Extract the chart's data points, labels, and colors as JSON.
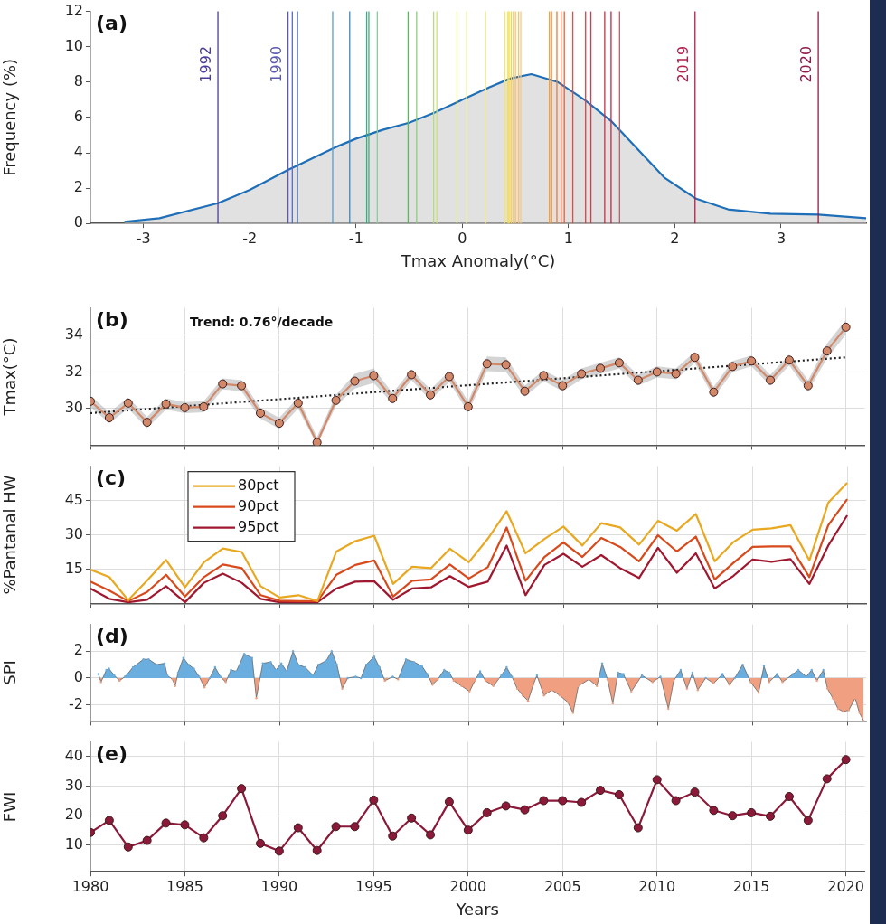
{
  "chart_data": [
    {
      "type": "area",
      "title": "(a)",
      "xlabel": "Tmax Anomaly(°C)",
      "ylabel": "Frequency (%)",
      "grid": false,
      "annotations": [
        {
          "text": "1992",
          "x": -2.3,
          "y": 9
        },
        {
          "text": "1990",
          "x": -1.64,
          "y": 9
        },
        {
          "text": "2019",
          "x": 2.19,
          "y": 9
        },
        {
          "text": "2020",
          "x": 3.35,
          "y": 9
        }
      ],
      "x": [
        -3.18,
        -2.85,
        -2.3,
        -2.0,
        -1.65,
        -1.2,
        -1.0,
        -0.75,
        -0.5,
        -0.25,
        0,
        0.25,
        0.45,
        0.65,
        0.9,
        1.15,
        1.4,
        1.65,
        1.9,
        2.2,
        2.5,
        2.9,
        3.35,
        3.8
      ],
      "series": [
        {
          "color": "#1f6fb8",
          "values": [
            0.1,
            0.3,
            1.15,
            1.9,
            3.0,
            4.3,
            4.8,
            5.3,
            5.7,
            6.3,
            7.0,
            7.7,
            8.2,
            8.45,
            8.0,
            7.0,
            5.8,
            4.2,
            2.6,
            1.4,
            0.8,
            0.55,
            0.5,
            0.3
          ]
        }
      ],
      "xlim": [
        -3.5,
        3.8
      ],
      "xticks": [
        -3,
        -2,
        -1,
        0,
        1,
        2,
        3
      ],
      "ylim": [
        0,
        12
      ],
      "yticks": [
        0,
        2,
        4,
        6,
        8,
        10,
        12
      ],
      "ref_lines": [
        {
          "axis": "x",
          "value": -2.3,
          "color": "#4a3d9a"
        },
        {
          "axis": "x",
          "value": -1.64,
          "color": "#5a5ab0"
        },
        {
          "axis": "x",
          "value": -1.6,
          "color": "#5b6cc0"
        },
        {
          "axis": "x",
          "value": -1.55,
          "color": "#5a80c8"
        },
        {
          "axis": "x",
          "value": -1.22,
          "color": "#5b9ccd"
        },
        {
          "axis": "x",
          "value": -1.06,
          "color": "#3f86b8"
        },
        {
          "axis": "x",
          "value": -0.9,
          "color": "#3aa88a"
        },
        {
          "axis": "x",
          "value": -0.88,
          "color": "#47ae7a"
        },
        {
          "axis": "x",
          "value": -0.8,
          "color": "#8ccb9f"
        },
        {
          "axis": "x",
          "value": -0.51,
          "color": "#5cb85c"
        },
        {
          "axis": "x",
          "value": -0.43,
          "color": "#8ad07a"
        },
        {
          "axis": "x",
          "value": -0.27,
          "color": "#b3dc7e"
        },
        {
          "axis": "x",
          "value": -0.24,
          "color": "#c8e07e"
        },
        {
          "axis": "x",
          "value": -0.05,
          "color": "#e6ee9a"
        },
        {
          "axis": "x",
          "value": 0.04,
          "color": "#f0f0a0"
        },
        {
          "axis": "x",
          "value": 0.22,
          "color": "#f2ea8a"
        },
        {
          "axis": "x",
          "value": 0.4,
          "color": "#f7e46a"
        },
        {
          "axis": "x",
          "value": 0.43,
          "color": "#f8d84a"
        },
        {
          "axis": "x",
          "value": 0.44,
          "color": "#f9e04c"
        },
        {
          "axis": "x",
          "value": 0.46,
          "color": "#fbd050"
        },
        {
          "axis": "x",
          "value": 0.48,
          "color": "#fcc85a"
        },
        {
          "axis": "x",
          "value": 0.5,
          "color": "#fbc060"
        },
        {
          "axis": "x",
          "value": 0.53,
          "color": "#fbbe70"
        },
        {
          "axis": "x",
          "value": 0.55,
          "color": "#f9c880"
        },
        {
          "axis": "x",
          "value": 0.82,
          "color": "#f39a2a"
        },
        {
          "axis": "x",
          "value": 0.84,
          "color": "#f08a2a"
        },
        {
          "axis": "x",
          "value": 0.89,
          "color": "#f07a30"
        },
        {
          "axis": "x",
          "value": 0.93,
          "color": "#ee6a3a"
        },
        {
          "axis": "x",
          "value": 0.96,
          "color": "#ea6040"
        },
        {
          "axis": "x",
          "value": 1.04,
          "color": "#e05040"
        },
        {
          "axis": "x",
          "value": 1.16,
          "color": "#dd4040"
        },
        {
          "axis": "x",
          "value": 1.21,
          "color": "#d83c48"
        },
        {
          "axis": "x",
          "value": 1.34,
          "color": "#c83048"
        },
        {
          "axis": "x",
          "value": 1.4,
          "color": "#c02848"
        },
        {
          "axis": "x",
          "value": 1.48,
          "color": "#b06070"
        },
        {
          "axis": "x",
          "value": 2.19,
          "color": "#b0204a"
        },
        {
          "axis": "x",
          "value": 3.35,
          "color": "#8e1a48"
        }
      ]
    },
    {
      "type": "line",
      "title": "(b)",
      "ylabel": "Tmax(°C)",
      "annotations": [
        "Trend: 0.76°/decade"
      ],
      "grid": true,
      "marker": "circle",
      "tick_labels": "y",
      "x": [
        1980,
        1981,
        1982,
        1983,
        1984,
        1985,
        1986,
        1987,
        1988,
        1989,
        1990,
        1991,
        1992,
        1993,
        1994,
        1995,
        1996,
        1997,
        1998,
        1999,
        2000,
        2001,
        2002,
        2003,
        2004,
        2005,
        2006,
        2007,
        2008,
        2009,
        2010,
        2011,
        2012,
        2013,
        2014,
        2015,
        2016,
        2017,
        2018,
        2019,
        2020
      ],
      "series": [
        {
          "color": "#d2896a",
          "values": [
            30.4,
            29.5,
            30.3,
            29.25,
            30.25,
            30.05,
            30.1,
            31.35,
            31.25,
            29.75,
            29.2,
            30.3,
            28.15,
            30.45,
            31.5,
            31.8,
            30.55,
            31.85,
            30.75,
            31.75,
            30.1,
            32.45,
            32.4,
            30.95,
            31.8,
            31.25,
            31.9,
            32.2,
            32.5,
            31.55,
            32.0,
            31.9,
            32.8,
            30.9,
            32.3,
            32.6,
            31.55,
            32.65,
            31.25,
            33.15,
            34.45
          ],
          "lower": [
            30.1,
            29.2,
            30.0,
            28.95,
            29.95,
            29.75,
            29.8,
            31.05,
            30.95,
            29.45,
            28.9,
            30.0,
            28.0,
            30.15,
            31.1,
            31.4,
            30.25,
            31.55,
            30.45,
            31.45,
            29.8,
            32.05,
            32.0,
            30.65,
            31.5,
            30.95,
            31.6,
            31.9,
            32.2,
            31.25,
            31.7,
            31.6,
            32.5,
            30.6,
            32.0,
            32.3,
            31.25,
            32.35,
            30.95,
            32.75,
            34.05
          ],
          "upper": [
            30.7,
            29.8,
            30.6,
            29.55,
            30.55,
            30.35,
            30.4,
            31.65,
            31.55,
            30.05,
            29.5,
            30.6,
            28.45,
            30.75,
            31.9,
            32.2,
            30.85,
            32.15,
            31.05,
            32.05,
            30.4,
            32.85,
            32.8,
            31.25,
            32.1,
            31.55,
            32.2,
            32.5,
            32.8,
            31.85,
            32.3,
            32.2,
            33.1,
            31.2,
            32.6,
            32.9,
            31.85,
            32.95,
            31.55,
            33.55,
            34.85
          ]
        },
        {
          "type": "line",
          "color": "#222222",
          "x": [
            1980,
            2020
          ],
          "values": [
            29.75,
            32.8
          ],
          "line_style": "dotted",
          "marker": "none"
        }
      ],
      "xlim": [
        1980,
        2021
      ],
      "xticks": [
        1980,
        1985,
        1990,
        1995,
        2000,
        2005,
        2010,
        2015,
        2020
      ],
      "ylim": [
        28,
        35.5
      ],
      "yticks": [
        30,
        32,
        34
      ]
    },
    {
      "type": "line",
      "title": "(c)",
      "ylabel": "%Pantanal HW",
      "grid": true,
      "legend": "top left",
      "tick_labels": "y",
      "x": [
        1980,
        1981,
        1982,
        1983,
        1984,
        1985,
        1986,
        1987,
        1988,
        1989,
        1990,
        1991,
        1992,
        1993,
        1994,
        1995,
        1996,
        1997,
        1998,
        1999,
        2000,
        2001,
        2002,
        2003,
        2004,
        2005,
        2006,
        2007,
        2008,
        2009,
        2010,
        2011,
        2012,
        2013,
        2014,
        2015,
        2016,
        2017,
        2018,
        2019,
        2020
      ],
      "series": [
        {
          "name": "80pct",
          "color": "#e8a820",
          "values": [
            14.8,
            11.5,
            1.4,
            10,
            19,
            7,
            18,
            24,
            22.5,
            7.5,
            2.6,
            3.6,
            1,
            22.7,
            27.2,
            29.6,
            8.5,
            16,
            15.4,
            23.9,
            18,
            28.2,
            40.3,
            21.9,
            28.2,
            33.6,
            25.3,
            35.1,
            33.2,
            25.7,
            36.1,
            31.8,
            39.1,
            18.4,
            26.9,
            32.2,
            32.8,
            34.2,
            18.8,
            44,
            52.7
          ]
        },
        {
          "name": "90pct",
          "color": "#d84a1c",
          "values": [
            9.5,
            5.6,
            1,
            5,
            12.5,
            3,
            11.5,
            17,
            15.4,
            3.6,
            1.2,
            1,
            1,
            12.5,
            16.8,
            18.8,
            3,
            9.9,
            10.5,
            17,
            10.9,
            15.8,
            33.2,
            9.9,
            20.3,
            26.7,
            20.3,
            28.6,
            24.7,
            18.4,
            29.8,
            22.7,
            29.2,
            10.5,
            17.8,
            24.7,
            24.9,
            24.9,
            11.5,
            34.2,
            45.6
          ]
        },
        {
          "name": "95pct",
          "color": "#a01830",
          "values": [
            6.5,
            2,
            0.5,
            1.6,
            7.5,
            0.5,
            9,
            13,
            9,
            2,
            0.5,
            0.5,
            0.5,
            6.5,
            9.5,
            9.7,
            1.6,
            6.5,
            7,
            11.9,
            7.2,
            9.5,
            25.3,
            3.6,
            16.8,
            21.7,
            16,
            21.1,
            15.4,
            11.1,
            24.3,
            13.4,
            21.9,
            6.5,
            12.1,
            19.2,
            18.2,
            19.4,
            8.5,
            25.3,
            38.5
          ]
        }
      ],
      "xlim": [
        1980,
        2021
      ],
      "xticks": [
        1980,
        1985,
        1990,
        1995,
        2000,
        2005,
        2010,
        2015,
        2020
      ],
      "ylim": [
        0,
        60
      ],
      "yticks": [
        15,
        30,
        45
      ]
    },
    {
      "type": "area",
      "title": "(d)",
      "ylabel": "SPI",
      "grid": true,
      "tick_labels": "y",
      "x": [
        1980.42,
        1980.56,
        1980.84,
        1980.98,
        1981.26,
        1981.54,
        1981.82,
        1981.96,
        1982.24,
        1982.8,
        1983.08,
        1983.5,
        1983.92,
        1984.06,
        1984.34,
        1984.48,
        1984.63,
        1984.91,
        1985.19,
        1985.47,
        1985.75,
        1986.03,
        1986.31,
        1986.59,
        1986.87,
        1987.15,
        1987.43,
        1987.71,
        1988.13,
        1988.55,
        1988.77,
        1989.11,
        1989.53,
        1989.81,
        1990.09,
        1990.37,
        1990.71,
        1990.99,
        1991.35,
        1991.77,
        1992.05,
        1992.47,
        1992.75,
        1993.03,
        1993.31,
        1993.6,
        1994.02,
        1994.3,
        1994.58,
        1995.0,
        1995.28,
        1995.56,
        1995.98,
        1996.26,
        1996.68,
        1997.1,
        1997.52,
        1997.8,
        1998.08,
        1998.36,
        1998.7,
        1998.98,
        1999.2,
        1999.62,
        2000.04,
        2000.32,
        2000.6,
        2000.88,
        2001.3,
        2001.72,
        2002.0,
        2002.28,
        2002.56,
        2002.85,
        2003.13,
        2003.41,
        2003.6,
        2003.97,
        2004.39,
        2004.81,
        2005.23,
        2005.51,
        2005.79,
        2006.35,
        2006.77,
        2007.05,
        2007.33,
        2007.61,
        2007.89,
        2008.17,
        2008.59,
        2009.15,
        2009.71,
        2010.13,
        2010.55,
        2010.83,
        2011.2,
        2011.53,
        2011.82,
        2012.1,
        2012.52,
        2012.94,
        2013.41,
        2013.78,
        2014.06,
        2014.48,
        2014.9,
        2015.32,
        2015.6,
        2015.88,
        2016.3,
        2016.58,
        2017.14,
        2017.42,
        2017.84,
        2018.12,
        2018.4,
        2018.74,
        2018.96,
        2019.24,
        2019.52,
        2019.8,
        2020.08,
        2020.42,
        2020.65,
        2020.87
      ],
      "values": [
        0.3,
        -0.3,
        0.6,
        0.7,
        0.2,
        -0.2,
        0.1,
        0.3,
        0.8,
        1.4,
        1.4,
        1.0,
        1.1,
        0.2,
        -0.1,
        -0.6,
        0.4,
        1.5,
        1.0,
        0.7,
        0.1,
        -0.7,
        0,
        0.8,
        0.1,
        -0.3,
        0.6,
        0.5,
        1.8,
        1.5,
        -1.5,
        1.1,
        1.2,
        0.6,
        1.1,
        0.5,
        2.0,
        1.0,
        0.8,
        0.2,
        1.0,
        1.3,
        2.0,
        1.0,
        -0.8,
        0,
        0.1,
        0,
        1.0,
        1.6,
        0.8,
        -0.2,
        0.1,
        -0.1,
        1.4,
        1.2,
        0.9,
        0.3,
        -0.5,
        -0.1,
        0.6,
        0.4,
        -0.2,
        -0.6,
        -1.0,
        -0.2,
        0.5,
        -0.2,
        -0.6,
        0.2,
        0.8,
        0.1,
        -0.8,
        -1.3,
        -1.7,
        -0.5,
        0.2,
        -1.3,
        -0.9,
        -1.3,
        -1.8,
        -2.6,
        -0.6,
        -0.1,
        -0.6,
        1.1,
        -0.1,
        -1.9,
        0.4,
        0.3,
        -1.0,
        0.2,
        -0.3,
        0.1,
        -2.3,
        -0.2,
        0.6,
        -0.8,
        0.4,
        -0.9,
        0,
        -0.4,
        0.3,
        -0.5,
        0,
        1.0,
        -0.3,
        -1.1,
        0.9,
        -0.3,
        0.3,
        -0.3,
        0.3,
        0.6,
        0.1,
        0.6,
        -0.2,
        0.6,
        -0.8,
        -1.5,
        -2.3,
        -2.5,
        -2.4,
        -1.5,
        -2.6,
        -3.2
      ],
      "colors": [
        "#6aaee0",
        "#f0a080",
        "#6aaee0",
        "#6aaee0",
        "#6aaee0",
        "#f0a080",
        "#6aaee0",
        "#6aaee0",
        "#6aaee0",
        "#6aaee0",
        "#6aaee0",
        "#6aaee0",
        "#6aaee0",
        "#6aaee0",
        "#f0a080",
        "#f0a080",
        "#6aaee0",
        "#6aaee0",
        "#6aaee0",
        "#6aaee0",
        "#6aaee0",
        "#f0a080",
        "#6aaee0",
        "#6aaee0",
        "#6aaee0",
        "#f0a080",
        "#6aaee0",
        "#6aaee0",
        "#6aaee0",
        "#6aaee0",
        "#f0a080",
        "#6aaee0",
        "#6aaee0",
        "#6aaee0",
        "#6aaee0",
        "#6aaee0",
        "#6aaee0",
        "#6aaee0",
        "#6aaee0",
        "#6aaee0",
        "#6aaee0",
        "#6aaee0",
        "#6aaee0",
        "#6aaee0",
        "#f0a080",
        "#6aaee0",
        "#6aaee0",
        "#6aaee0",
        "#6aaee0",
        "#6aaee0",
        "#6aaee0",
        "#f0a080",
        "#6aaee0",
        "#f0a080",
        "#6aaee0",
        "#6aaee0",
        "#6aaee0",
        "#6aaee0",
        "#f0a080",
        "#f0a080",
        "#6aaee0",
        "#6aaee0",
        "#f0a080",
        "#f0a080",
        "#f0a080",
        "#f0a080",
        "#6aaee0",
        "#f0a080",
        "#f0a080",
        "#6aaee0",
        "#6aaee0",
        "#6aaee0",
        "#f0a080",
        "#f0a080",
        "#f0a080",
        "#f0a080",
        "#6aaee0",
        "#f0a080",
        "#f0a080",
        "#f0a080",
        "#f0a080",
        "#f0a080",
        "#f0a080",
        "#f0a080",
        "#f0a080",
        "#6aaee0",
        "#f0a080",
        "#f0a080",
        "#6aaee0",
        "#6aaee0",
        "#f0a080",
        "#6aaee0",
        "#f0a080",
        "#6aaee0",
        "#f0a080",
        "#f0a080",
        "#6aaee0",
        "#f0a080",
        "#6aaee0",
        "#f0a080",
        "#6aaee0",
        "#f0a080",
        "#6aaee0",
        "#f0a080",
        "#6aaee0",
        "#6aaee0",
        "#f0a080",
        "#f0a080",
        "#6aaee0",
        "#f0a080",
        "#6aaee0",
        "#f0a080",
        "#6aaee0",
        "#6aaee0",
        "#6aaee0",
        "#6aaee0",
        "#f0a080",
        "#6aaee0",
        "#f0a080",
        "#f0a080",
        "#f0a080",
        "#f0a080",
        "#f0a080",
        "#f0a080",
        "#f0a080",
        "#f0a080"
      ],
      "xlim": [
        1980,
        2021
      ],
      "xticks": [
        1980,
        1985,
        1990,
        1995,
        2000,
        2005,
        2010,
        2015,
        2020
      ],
      "ylim": [
        -3.2,
        4
      ],
      "yticks": [
        -2,
        0,
        2
      ]
    },
    {
      "type": "line",
      "title": "(e)",
      "xlabel": "Years",
      "ylabel": "FWI",
      "grid": true,
      "marker": "circle",
      "x": [
        1980,
        1981,
        1982,
        1983,
        1984,
        1985,
        1986,
        1987,
        1988,
        1989,
        1990,
        1991,
        1992,
        1993,
        1994,
        1995,
        1996,
        1997,
        1998,
        1999,
        2000,
        2001,
        2002,
        2003,
        2004,
        2005,
        2006,
        2007,
        2008,
        2009,
        2010,
        2011,
        2012,
        2013,
        2014,
        2015,
        2016,
        2017,
        2018,
        2019,
        2020
      ],
      "series": [
        {
          "color": "#8b1a3a",
          "values": [
            14.3,
            18.4,
            9.4,
            11.6,
            17.5,
            16.9,
            12.5,
            20,
            29.2,
            10.6,
            8,
            15.9,
            8.2,
            16.3,
            16.3,
            25.3,
            13.1,
            19.2,
            13.5,
            24.7,
            15.1,
            21,
            23.3,
            22,
            25.1,
            25.1,
            24.5,
            28.6,
            27.1,
            15.9,
            32.2,
            25.1,
            28,
            21.8,
            20,
            21,
            19.8,
            26.5,
            18.4,
            32.5,
            39
          ]
        }
      ],
      "xlim": [
        1980,
        2021
      ],
      "xticks": [
        1980,
        1985,
        1990,
        1995,
        2000,
        2005,
        2010,
        2015,
        2020
      ],
      "ylim": [
        1,
        45
      ],
      "yticks": [
        10,
        20,
        30,
        40
      ]
    }
  ]
}
